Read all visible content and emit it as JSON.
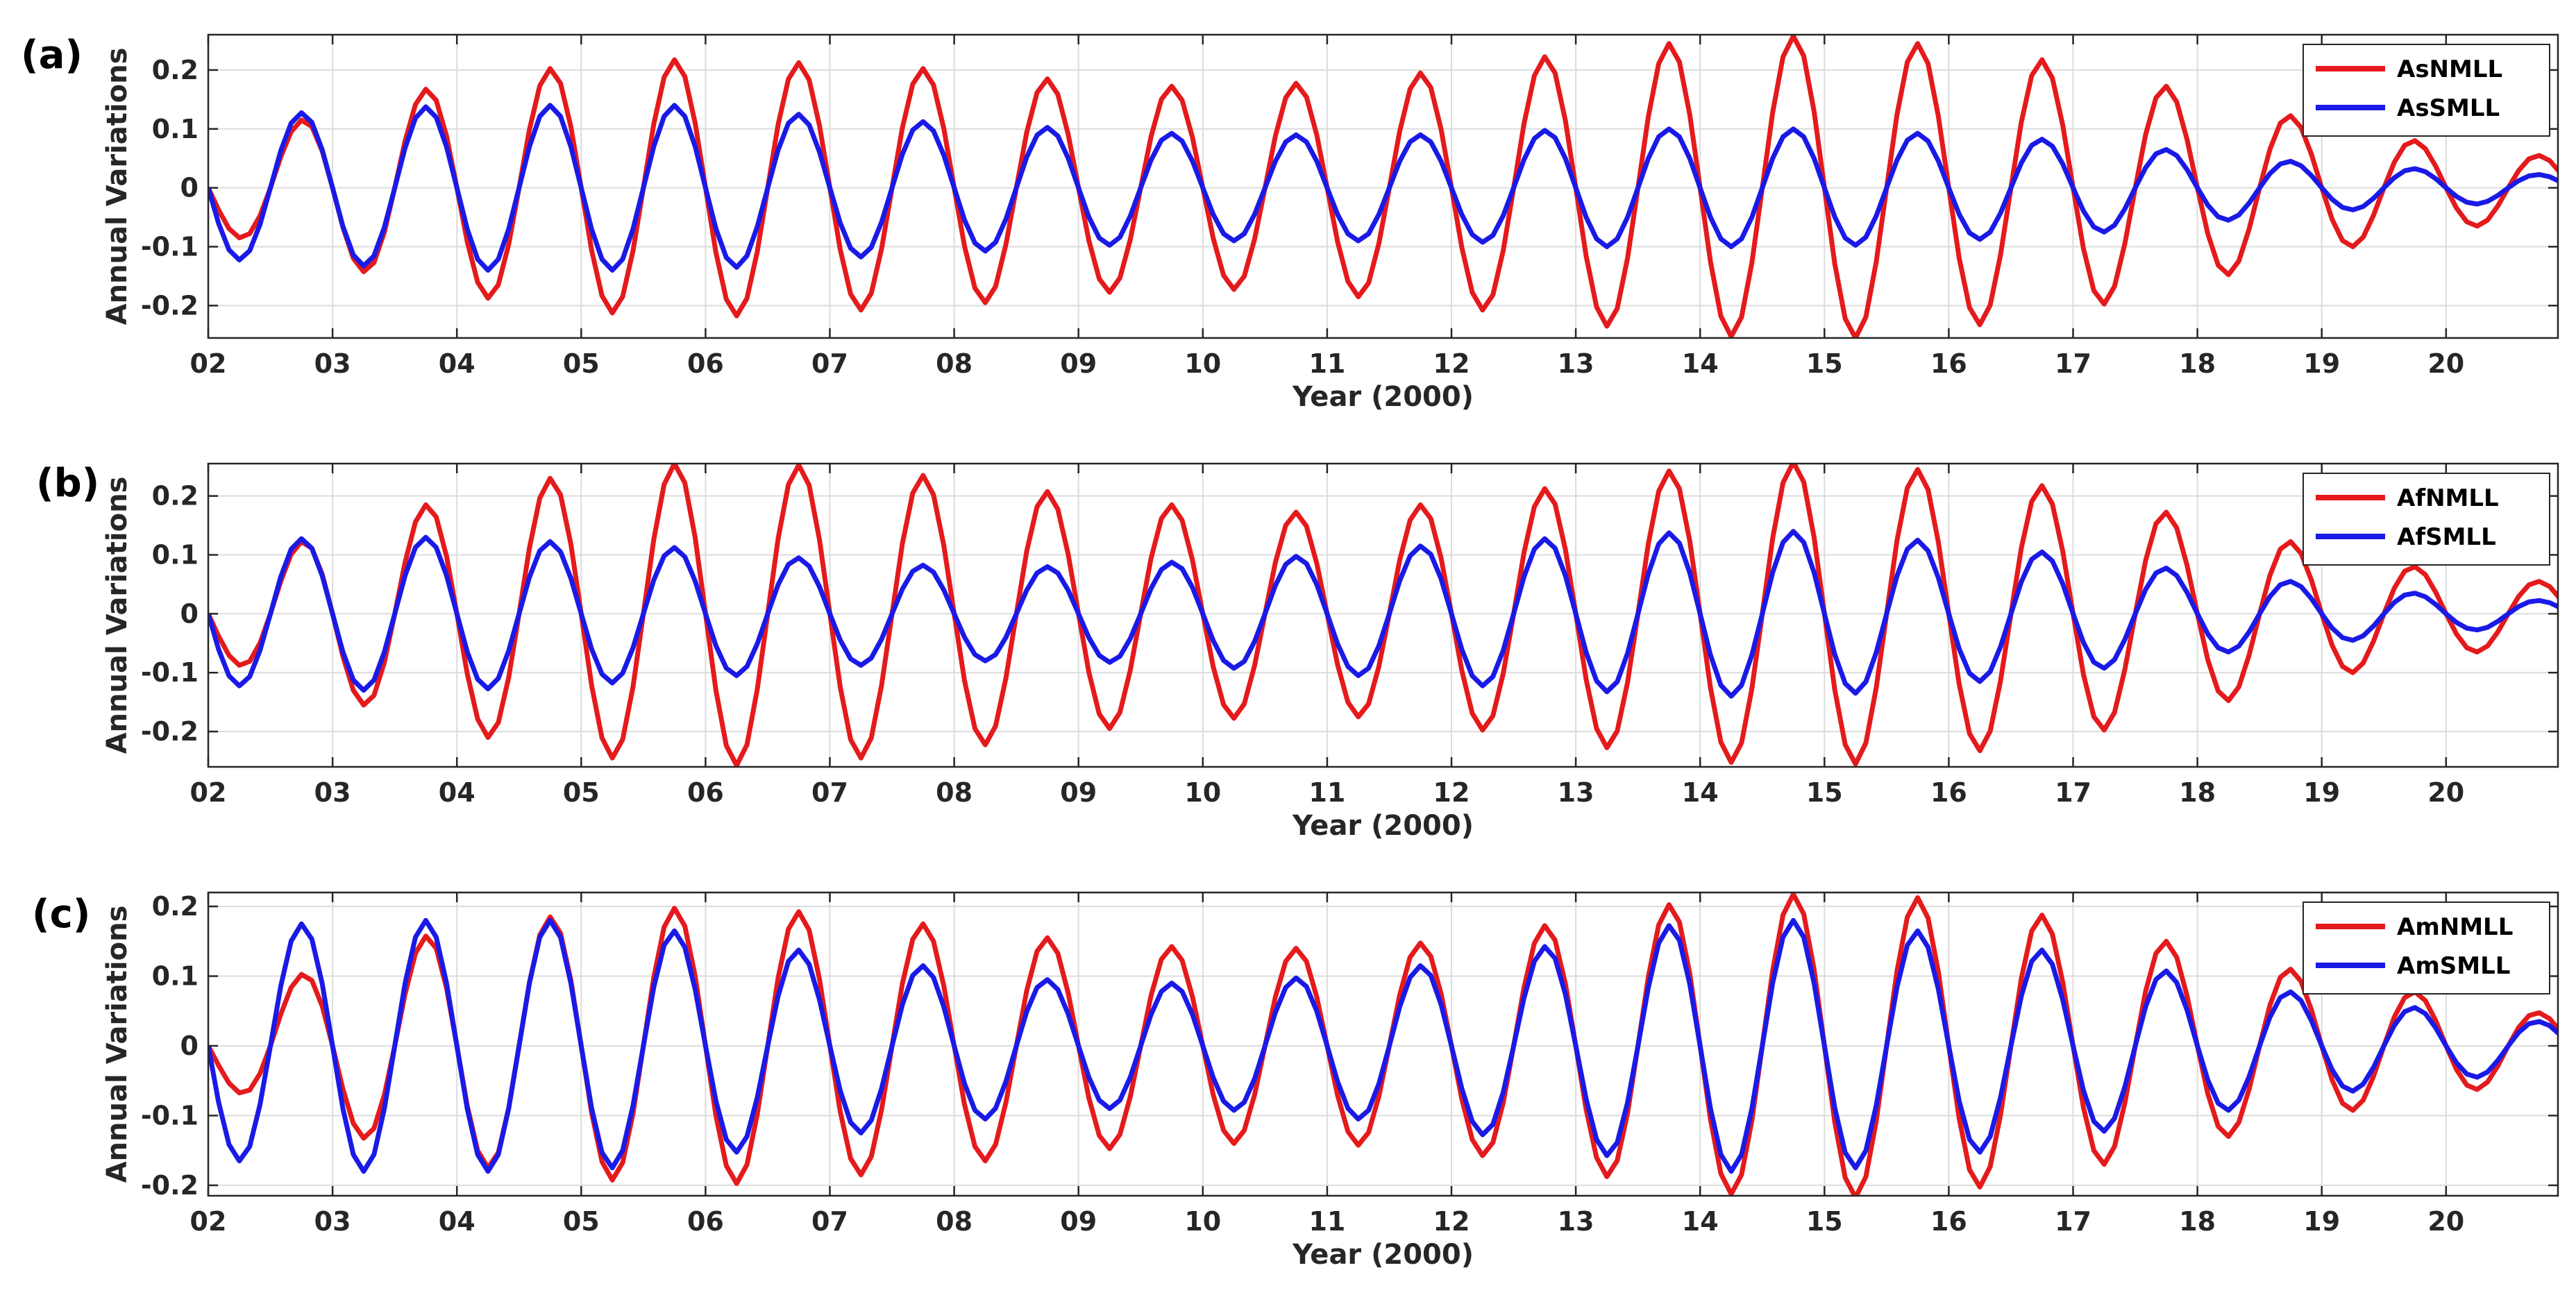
{
  "chart_data": [
    {
      "type": "line",
      "panel_label": "(a)",
      "xlabel": "Year (2000)",
      "ylabel": "Annual Variations",
      "xlim": [
        2.0,
        20.9
      ],
      "ylim": [
        -0.255,
        0.26
      ],
      "yticks": [
        -0.2,
        -0.1,
        0,
        0.1,
        0.2
      ],
      "ytick_labels": [
        "-0.2",
        "-0.1",
        "0",
        "0.1",
        "0.2"
      ],
      "xticks": [
        2,
        3,
        4,
        5,
        6,
        7,
        8,
        9,
        10,
        11,
        12,
        13,
        14,
        15,
        16,
        17,
        18,
        19,
        20
      ],
      "xtick_labels": [
        "02",
        "03",
        "04",
        "05",
        "06",
        "07",
        "08",
        "09",
        "10",
        "11",
        "12",
        "13",
        "14",
        "15",
        "16",
        "17",
        "18",
        "19",
        "20"
      ],
      "grid": true,
      "legend_position": "top-right",
      "series": [
        {
          "name": "AsNMLL",
          "color": "#e41a1c",
          "phase": 1,
          "amplitude_by_year": [
            0.07,
            0.13,
            0.18,
            0.21,
            0.22,
            0.21,
            0.2,
            0.18,
            0.17,
            0.18,
            0.2,
            0.23,
            0.25,
            0.26,
            0.24,
            0.21,
            0.16,
            0.11,
            0.07,
            0.05
          ]
        },
        {
          "name": "AsSMLL",
          "color": "#1a1ae6",
          "phase": -1,
          "amplitude_by_year": [
            0.12,
            0.13,
            0.14,
            0.14,
            0.14,
            0.12,
            0.11,
            0.1,
            0.09,
            0.09,
            0.09,
            0.1,
            0.1,
            0.1,
            0.09,
            0.08,
            0.06,
            0.04,
            0.03,
            0.02
          ]
        }
      ]
    },
    {
      "type": "line",
      "panel_label": "(b)",
      "xlabel": "Year (2000)",
      "ylabel": "Annual Variations",
      "xlim": [
        2.0,
        20.9
      ],
      "ylim": [
        -0.26,
        0.255
      ],
      "yticks": [
        -0.2,
        -0.1,
        0,
        0.1,
        0.2
      ],
      "ytick_labels": [
        "-0.2",
        "-0.1",
        "0",
        "0.1",
        "0.2"
      ],
      "xticks": [
        2,
        3,
        4,
        5,
        6,
        7,
        8,
        9,
        10,
        11,
        12,
        13,
        14,
        15,
        16,
        17,
        18,
        19,
        20
      ],
      "xtick_labels": [
        "02",
        "03",
        "04",
        "05",
        "06",
        "07",
        "08",
        "09",
        "10",
        "11",
        "12",
        "13",
        "14",
        "15",
        "16",
        "17",
        "18",
        "19",
        "20"
      ],
      "grid": true,
      "legend_position": "top-right",
      "series": [
        {
          "name": "AfNMLL",
          "color": "#e41a1c",
          "phase": 1,
          "amplitude_by_year": [
            0.07,
            0.14,
            0.2,
            0.24,
            0.26,
            0.25,
            0.23,
            0.2,
            0.18,
            0.17,
            0.19,
            0.22,
            0.25,
            0.26,
            0.24,
            0.21,
            0.16,
            0.11,
            0.07,
            0.05
          ]
        },
        {
          "name": "AfSMLL",
          "color": "#1a1ae6",
          "phase": -1,
          "amplitude_by_year": [
            0.12,
            0.13,
            0.13,
            0.12,
            0.11,
            0.09,
            0.08,
            0.08,
            0.09,
            0.1,
            0.12,
            0.13,
            0.14,
            0.14,
            0.12,
            0.1,
            0.07,
            0.05,
            0.03,
            0.02
          ]
        }
      ]
    },
    {
      "type": "line",
      "panel_label": "(c)",
      "xlabel": "Year (2000)",
      "ylabel": "Annual Variations",
      "xlim": [
        2.0,
        20.9
      ],
      "ylim": [
        -0.215,
        0.22
      ],
      "yticks": [
        -0.2,
        -0.1,
        0,
        0.1,
        0.2
      ],
      "ytick_labels": [
        "-0.2",
        "-0.1",
        "0",
        "0.1",
        "0.2"
      ],
      "xticks": [
        2,
        3,
        4,
        5,
        6,
        7,
        8,
        9,
        10,
        11,
        12,
        13,
        14,
        15,
        16,
        17,
        18,
        19,
        20
      ],
      "xtick_labels": [
        "02",
        "03",
        "04",
        "05",
        "06",
        "07",
        "08",
        "09",
        "10",
        "11",
        "12",
        "13",
        "14",
        "15",
        "16",
        "17",
        "18",
        "19",
        "20"
      ],
      "grid": true,
      "legend_position": "top-right",
      "series": [
        {
          "name": "AmNMLL",
          "color": "#e41a1c",
          "phase": 1,
          "amplitude_by_year": [
            0.05,
            0.12,
            0.17,
            0.19,
            0.2,
            0.19,
            0.17,
            0.15,
            0.14,
            0.14,
            0.15,
            0.18,
            0.21,
            0.22,
            0.21,
            0.18,
            0.14,
            0.1,
            0.07,
            0.04
          ]
        },
        {
          "name": "AmSMLL",
          "color": "#1a1ae6",
          "phase": -1,
          "amplitude_by_year": [
            0.16,
            0.18,
            0.18,
            0.18,
            0.16,
            0.13,
            0.11,
            0.09,
            0.09,
            0.1,
            0.12,
            0.15,
            0.18,
            0.18,
            0.16,
            0.13,
            0.1,
            0.07,
            0.05,
            0.03
          ]
        }
      ]
    }
  ]
}
